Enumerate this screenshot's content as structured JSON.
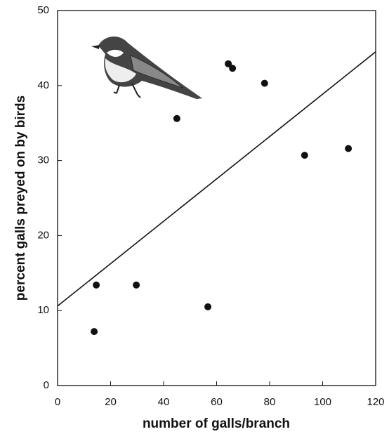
{
  "chart_data": {
    "type": "scatter",
    "x_label": "number of galls/branch",
    "y_label": "percent galls preyed on by birds",
    "x": [
      13.8,
      14.6,
      29.7,
      56.7,
      45.0,
      64.4,
      66.0,
      78.1,
      93.2,
      109.7
    ],
    "values": [
      7.2,
      13.4,
      13.4,
      10.5,
      35.6,
      42.9,
      42.3,
      40.3,
      30.7,
      31.6
    ],
    "color": "#111111",
    "fit": {
      "x": [
        0,
        120
      ],
      "values": [
        10.6,
        44.5
      ]
    },
    "xlim": [
      0,
      120
    ],
    "xticks": [
      0,
      20,
      40,
      60,
      80,
      100,
      120
    ],
    "ylim": [
      0,
      50
    ],
    "yticks": [
      0,
      10,
      20,
      30,
      40,
      50
    ],
    "grid": false
  }
}
